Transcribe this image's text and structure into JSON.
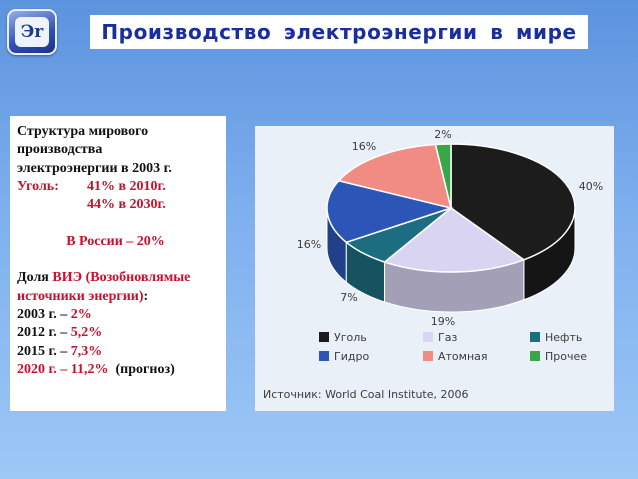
{
  "header": {
    "logo_text": "Эr",
    "title": "Производство электроэнергии в мире"
  },
  "info": {
    "line1": "Структура мирового",
    "line2": "производства",
    "line3": "электроэнергии в 2003 г.",
    "coal_label": "Уголь:",
    "coal_2010": "41% в 2010г.",
    "coal_2030": "44% в 2030г.",
    "russia": "В России – 20%",
    "res_prefix": "Доля ",
    "res_abbr": "ВИЭ",
    "res_paren_open": " (Возобновлямые",
    "res_line2": "источники энергии)",
    "res_colon": ":",
    "y2003": "2003 г. – ",
    "v2003": "2%",
    "y2012": "2012 г. – ",
    "v2012": "5,2%",
    "y2015": "2015 г. – ",
    "v2015": "7,3%",
    "y2020": "2020 г. – 11,2%",
    "forecast": "(прогноз)"
  },
  "chart_data": {
    "type": "pie",
    "title": "",
    "categories": [
      "Уголь",
      "Газ",
      "Нефть",
      "Гидро",
      "Атомная",
      "Прочее"
    ],
    "values": [
      40,
      19,
      7,
      16,
      16,
      2
    ],
    "labels": [
      "40%",
      "19%",
      "7%",
      "16%",
      "16%",
      "2%"
    ],
    "colors": {
      "Уголь": "#1c1c1c",
      "Газ": "#d9d4f2",
      "Нефть": "#1d6d80",
      "Гидро": "#2c55b8",
      "Атомная": "#f08c84",
      "Прочее": "#3aa64a"
    },
    "legend_position": "bottom",
    "source": "Источник: World Coal Institute, 2006"
  }
}
